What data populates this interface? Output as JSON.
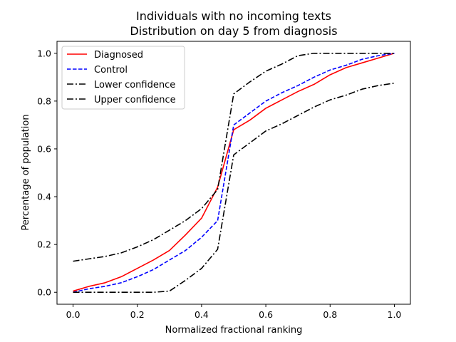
{
  "chart_data": {
    "type": "line",
    "title": [
      "Individuals with no incoming texts",
      "Distribution on day 5 from diagnosis"
    ],
    "xlabel": "Normalized fractional ranking",
    "ylabel": "Percentage of population",
    "xlim": [
      -0.05,
      1.05
    ],
    "ylim": [
      -0.05,
      1.05
    ],
    "xticks": [
      0.0,
      0.2,
      0.4,
      0.6,
      0.8,
      1.0
    ],
    "xtick_labels": [
      "0.0",
      "0.2",
      "0.4",
      "0.6",
      "0.8",
      "1.0"
    ],
    "yticks": [
      0.0,
      0.2,
      0.4,
      0.6,
      0.8,
      1.0
    ],
    "ytick_labels": [
      "0.0",
      "0.2",
      "0.4",
      "0.6",
      "0.8",
      "1.0"
    ],
    "grid": false,
    "legend_position": "top-left",
    "series": [
      {
        "name": "Diagnosed",
        "color": "#ff0000",
        "dash": "solid",
        "x": [
          0.0,
          0.05,
          0.1,
          0.15,
          0.2,
          0.25,
          0.3,
          0.35,
          0.4,
          0.45,
          0.5,
          0.55,
          0.6,
          0.65,
          0.7,
          0.75,
          0.8,
          0.85,
          0.9,
          0.95,
          1.0
        ],
        "y": [
          0.005,
          0.025,
          0.04,
          0.065,
          0.1,
          0.135,
          0.175,
          0.24,
          0.31,
          0.44,
          0.68,
          0.72,
          0.77,
          0.805,
          0.84,
          0.87,
          0.91,
          0.94,
          0.96,
          0.98,
          1.0
        ]
      },
      {
        "name": "Control",
        "color": "#0000ff",
        "dash": "dashed",
        "x": [
          0.0,
          0.05,
          0.1,
          0.15,
          0.2,
          0.25,
          0.3,
          0.35,
          0.4,
          0.45,
          0.5,
          0.55,
          0.6,
          0.65,
          0.7,
          0.75,
          0.8,
          0.85,
          0.9,
          0.95,
          1.0
        ],
        "y": [
          0.0,
          0.015,
          0.025,
          0.04,
          0.065,
          0.095,
          0.135,
          0.175,
          0.23,
          0.3,
          0.7,
          0.75,
          0.8,
          0.835,
          0.865,
          0.9,
          0.93,
          0.95,
          0.975,
          0.99,
          1.0
        ]
      },
      {
        "name": "Lower confidence",
        "color": "#000000",
        "dash": "dashdot",
        "x": [
          0.0,
          0.05,
          0.1,
          0.15,
          0.2,
          0.25,
          0.3,
          0.35,
          0.4,
          0.45,
          0.5,
          0.55,
          0.6,
          0.65,
          0.7,
          0.75,
          0.8,
          0.85,
          0.9,
          0.95,
          1.0
        ],
        "y": [
          0.0,
          0.0,
          0.0,
          0.0,
          0.0,
          0.0,
          0.005,
          0.05,
          0.1,
          0.18,
          0.575,
          0.625,
          0.675,
          0.705,
          0.74,
          0.775,
          0.805,
          0.825,
          0.85,
          0.865,
          0.875
        ]
      },
      {
        "name": "Upper confidence",
        "color": "#000000",
        "dash": "dashdot",
        "x": [
          0.0,
          0.05,
          0.1,
          0.15,
          0.2,
          0.25,
          0.3,
          0.35,
          0.4,
          0.45,
          0.5,
          0.55,
          0.6,
          0.65,
          0.7,
          0.75,
          0.8,
          0.85,
          0.9,
          0.95,
          1.0
        ],
        "y": [
          0.13,
          0.14,
          0.15,
          0.165,
          0.19,
          0.22,
          0.26,
          0.3,
          0.35,
          0.43,
          0.83,
          0.88,
          0.925,
          0.955,
          0.99,
          1.0,
          1.0,
          1.0,
          1.0,
          1.0,
          1.0
        ]
      }
    ]
  }
}
